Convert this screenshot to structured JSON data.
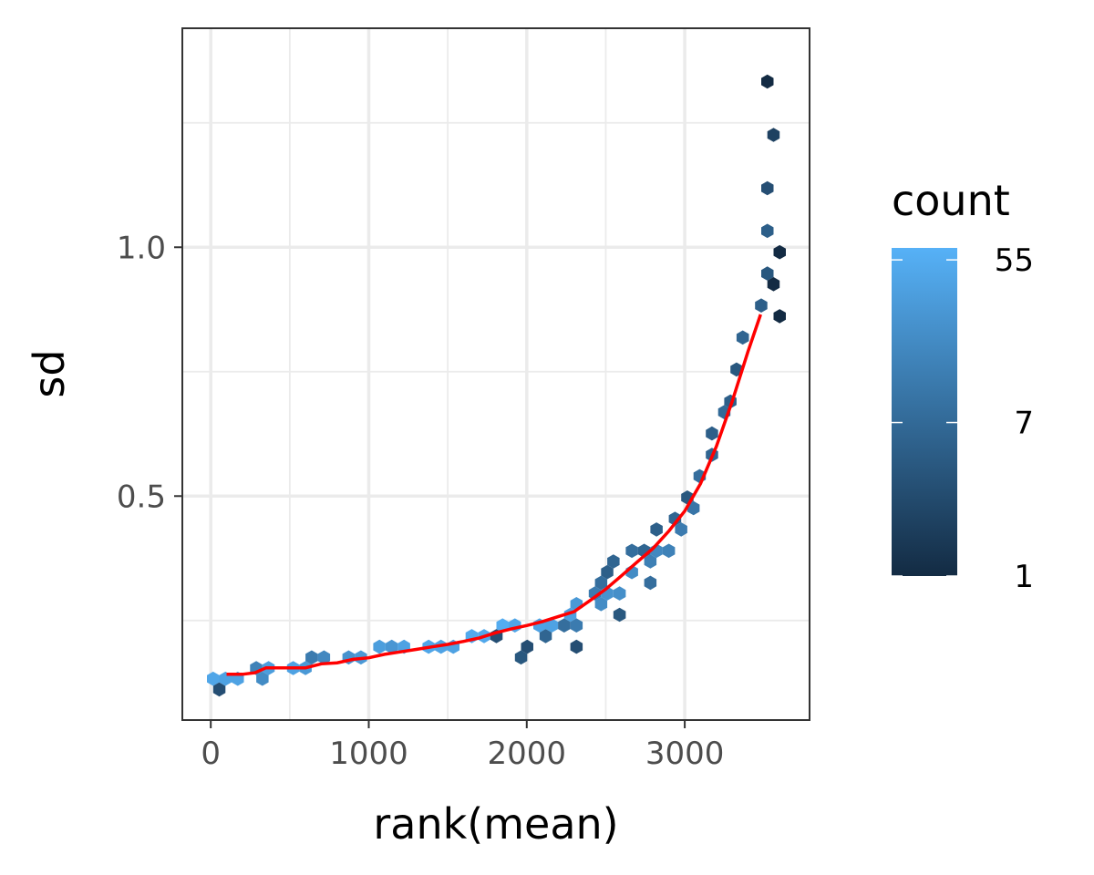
{
  "chart_data": {
    "type": "hexbin",
    "xlabel": "rank(mean)",
    "ylabel": "sd",
    "xlim": [
      -180,
      3790
    ],
    "ylim": [
      0.05,
      1.44
    ],
    "x_ticks": [
      0,
      1000,
      2000,
      3000
    ],
    "x_tick_labels": [
      "0",
      "1000",
      "2000",
      "3000"
    ],
    "y_ticks": [
      0.5,
      1.0
    ],
    "y_tick_labels": [
      "0.5",
      "1.0"
    ],
    "grid": true,
    "legend": {
      "title": "count",
      "placement": "right",
      "scale": "log",
      "range": [
        1,
        64
      ],
      "ticks": [
        1,
        7,
        55
      ],
      "tick_labels": [
        "1",
        "7",
        "55"
      ],
      "color_low": "#132b43",
      "color_high": "#56b1f7"
    },
    "trend_color": "#ff0000",
    "trend": [
      [
        100,
        0.142
      ],
      [
        200,
        0.142
      ],
      [
        280,
        0.145
      ],
      [
        350,
        0.155
      ],
      [
        450,
        0.155
      ],
      [
        600,
        0.155
      ],
      [
        700,
        0.163
      ],
      [
        800,
        0.165
      ],
      [
        900,
        0.172
      ],
      [
        1000,
        0.175
      ],
      [
        1100,
        0.182
      ],
      [
        1200,
        0.187
      ],
      [
        1300,
        0.192
      ],
      [
        1400,
        0.197
      ],
      [
        1500,
        0.202
      ],
      [
        1600,
        0.208
      ],
      [
        1700,
        0.215
      ],
      [
        1800,
        0.225
      ],
      [
        1900,
        0.233
      ],
      [
        2000,
        0.24
      ],
      [
        2100,
        0.248
      ],
      [
        2200,
        0.258
      ],
      [
        2300,
        0.268
      ],
      [
        2400,
        0.29
      ],
      [
        2500,
        0.313
      ],
      [
        2600,
        0.34
      ],
      [
        2700,
        0.368
      ],
      [
        2800,
        0.395
      ],
      [
        2900,
        0.43
      ],
      [
        3000,
        0.47
      ],
      [
        3100,
        0.525
      ],
      [
        3200,
        0.6
      ],
      [
        3300,
        0.69
      ],
      [
        3400,
        0.79
      ],
      [
        3480,
        0.865
      ]
    ],
    "hex_samples": [
      [
        0,
        0.14,
        45
      ],
      [
        60,
        0.12,
        3
      ],
      [
        100,
        0.14,
        40
      ],
      [
        200,
        0.14,
        40
      ],
      [
        300,
        0.14,
        20
      ],
      [
        300,
        0.158,
        15
      ],
      [
        350,
        0.142,
        5
      ],
      [
        400,
        0.158,
        35
      ],
      [
        500,
        0.158,
        40
      ],
      [
        600,
        0.158,
        30
      ],
      [
        650,
        0.175,
        12
      ],
      [
        750,
        0.175,
        18
      ],
      [
        850,
        0.175,
        25
      ],
      [
        950,
        0.175,
        30
      ],
      [
        1050,
        0.19,
        35
      ],
      [
        1150,
        0.19,
        28
      ],
      [
        1250,
        0.19,
        40
      ],
      [
        1350,
        0.205,
        45
      ],
      [
        1450,
        0.205,
        42
      ],
      [
        1550,
        0.205,
        40
      ],
      [
        1650,
        0.22,
        50
      ],
      [
        1750,
        0.22,
        48
      ],
      [
        1800,
        0.22,
        3
      ],
      [
        1850,
        0.235,
        55
      ],
      [
        1950,
        0.235,
        45
      ],
      [
        1950,
        0.175,
        4
      ],
      [
        2000,
        0.2,
        3
      ],
      [
        2050,
        0.25,
        42
      ],
      [
        2150,
        0.25,
        40
      ],
      [
        2150,
        0.215,
        6
      ],
      [
        2250,
        0.265,
        38
      ],
      [
        2250,
        0.23,
        8
      ],
      [
        2300,
        0.2,
        3
      ],
      [
        2350,
        0.28,
        30
      ],
      [
        2350,
        0.245,
        12
      ],
      [
        2400,
        0.31,
        12
      ],
      [
        2450,
        0.33,
        8
      ],
      [
        2450,
        0.28,
        20
      ],
      [
        2500,
        0.345,
        5
      ],
      [
        2500,
        0.3,
        25
      ],
      [
        2550,
        0.36,
        6
      ],
      [
        2550,
        0.26,
        4
      ],
      [
        2600,
        0.315,
        22
      ],
      [
        2650,
        0.38,
        8
      ],
      [
        2700,
        0.34,
        20
      ],
      [
        2750,
        0.4,
        6
      ],
      [
        2750,
        0.32,
        8
      ],
      [
        2800,
        0.36,
        14
      ],
      [
        2850,
        0.43,
        5
      ],
      [
        2850,
        0.38,
        18
      ],
      [
        2900,
        0.4,
        15
      ],
      [
        2950,
        0.46,
        6
      ],
      [
        3000,
        0.43,
        12
      ],
      [
        3000,
        0.5,
        4
      ],
      [
        3050,
        0.48,
        10
      ],
      [
        3100,
        0.53,
        8
      ],
      [
        3150,
        0.58,
        6
      ],
      [
        3200,
        0.62,
        5
      ],
      [
        3250,
        0.66,
        7
      ],
      [
        3300,
        0.7,
        5
      ],
      [
        3350,
        0.76,
        4
      ],
      [
        3400,
        0.82,
        6
      ],
      [
        3450,
        0.88,
        5
      ],
      [
        3500,
        0.95,
        4
      ],
      [
        3520,
        1.04,
        5
      ],
      [
        3550,
        1.12,
        3
      ],
      [
        3570,
        1.22,
        2
      ],
      [
        3560,
        1.33,
        1
      ],
      [
        3620,
        0.86,
        1
      ],
      [
        3600,
        1.0,
        1
      ],
      [
        3590,
        0.92,
        1
      ]
    ]
  }
}
